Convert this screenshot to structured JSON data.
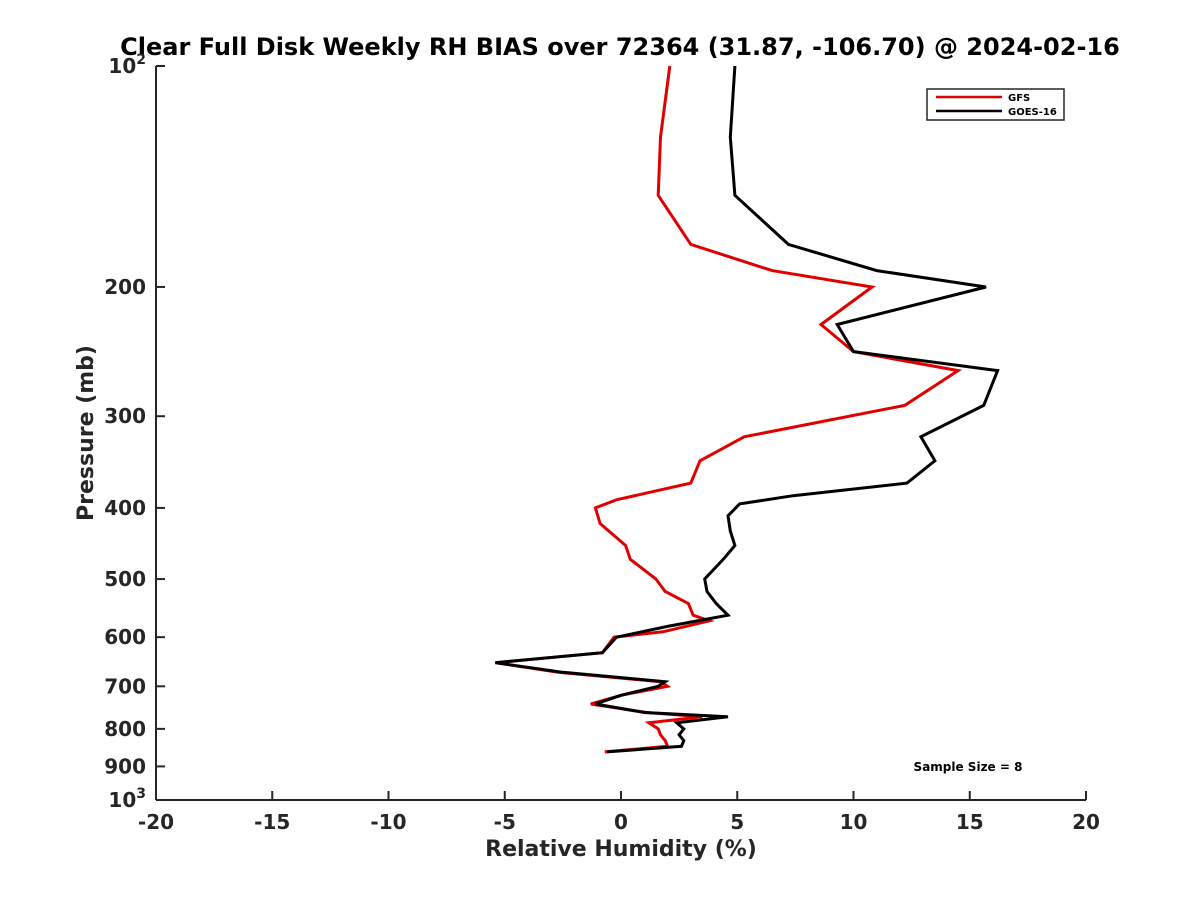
{
  "chart_data": {
    "type": "line",
    "title": "Clear Full Disk Weekly RH BIAS over 72364 (31.87, -106.70) @ 2024-02-16",
    "xlabel": "Relative Humidity (%)",
    "ylabel": "Pressure (mb)",
    "xlim": [
      -20,
      20
    ],
    "ylim": [
      100,
      1000
    ],
    "y_scale": "log",
    "y_reversed": true,
    "grid": false,
    "legend_position": "top-right",
    "x_ticks": [
      -20,
      -15,
      -10,
      -5,
      0,
      5,
      10,
      15,
      20
    ],
    "y_ticks": [
      {
        "value": 100,
        "base": "10",
        "exp": "2"
      },
      {
        "value": 200,
        "label": "200"
      },
      {
        "value": 300,
        "label": "300"
      },
      {
        "value": 400,
        "label": "400"
      },
      {
        "value": 500,
        "label": "500"
      },
      {
        "value": 600,
        "label": "600"
      },
      {
        "value": 700,
        "label": "700"
      },
      {
        "value": 800,
        "label": "800"
      },
      {
        "value": 900,
        "label": "900"
      },
      {
        "value": 1000,
        "base": "10",
        "exp": "3"
      }
    ],
    "series": [
      {
        "name": "GFS",
        "color": "#e00000",
        "points": [
          [
            2.1,
            100
          ],
          [
            1.7,
            125
          ],
          [
            1.6,
            150
          ],
          [
            3.0,
            175
          ],
          [
            6.5,
            190
          ],
          [
            10.8,
            200
          ],
          [
            8.6,
            225
          ],
          [
            10.0,
            245
          ],
          [
            14.5,
            260
          ],
          [
            12.2,
            290
          ],
          [
            5.3,
            320
          ],
          [
            3.4,
            345
          ],
          [
            3.0,
            370
          ],
          [
            -0.2,
            390
          ],
          [
            -1.1,
            400
          ],
          [
            -0.9,
            420
          ],
          [
            0.2,
            450
          ],
          [
            0.4,
            470
          ],
          [
            1.5,
            500
          ],
          [
            1.9,
            520
          ],
          [
            2.9,
            540
          ],
          [
            3.1,
            560
          ],
          [
            3.8,
            570
          ],
          [
            1.8,
            590
          ],
          [
            -0.3,
            600
          ],
          [
            -0.8,
            630
          ],
          [
            -5.4,
            650
          ],
          [
            -2.7,
            670
          ],
          [
            1.7,
            690
          ],
          [
            2.0,
            700
          ],
          [
            0.0,
            720
          ],
          [
            -1.3,
            740
          ],
          [
            1.1,
            760
          ],
          [
            3.5,
            770
          ],
          [
            1.2,
            785
          ],
          [
            1.6,
            800
          ],
          [
            1.7,
            815
          ],
          [
            1.9,
            830
          ],
          [
            2.0,
            845
          ],
          [
            -0.7,
            860
          ]
        ]
      },
      {
        "name": "GOES-16",
        "color": "#000000",
        "points": [
          [
            4.9,
            100
          ],
          [
            4.7,
            125
          ],
          [
            4.9,
            150
          ],
          [
            7.2,
            175
          ],
          [
            11.0,
            190
          ],
          [
            15.7,
            200
          ],
          [
            9.3,
            225
          ],
          [
            10.0,
            245
          ],
          [
            16.2,
            260
          ],
          [
            15.6,
            290
          ],
          [
            12.9,
            320
          ],
          [
            13.5,
            345
          ],
          [
            12.3,
            370
          ],
          [
            7.4,
            385
          ],
          [
            5.1,
            395
          ],
          [
            4.6,
            410
          ],
          [
            4.7,
            430
          ],
          [
            4.9,
            450
          ],
          [
            4.4,
            470
          ],
          [
            3.6,
            500
          ],
          [
            3.7,
            520
          ],
          [
            4.1,
            540
          ],
          [
            4.6,
            560
          ],
          [
            2.0,
            580
          ],
          [
            -0.2,
            600
          ],
          [
            -0.8,
            630
          ],
          [
            -5.4,
            650
          ],
          [
            -2.5,
            670
          ],
          [
            1.9,
            690
          ],
          [
            1.6,
            700
          ],
          [
            0.0,
            720
          ],
          [
            -1.1,
            740
          ],
          [
            1.0,
            760
          ],
          [
            4.6,
            770
          ],
          [
            2.4,
            785
          ],
          [
            2.7,
            800
          ],
          [
            2.5,
            815
          ],
          [
            2.7,
            830
          ],
          [
            2.6,
            845
          ],
          [
            -0.6,
            860
          ]
        ]
      }
    ],
    "annotation": "Sample Size = 8"
  }
}
